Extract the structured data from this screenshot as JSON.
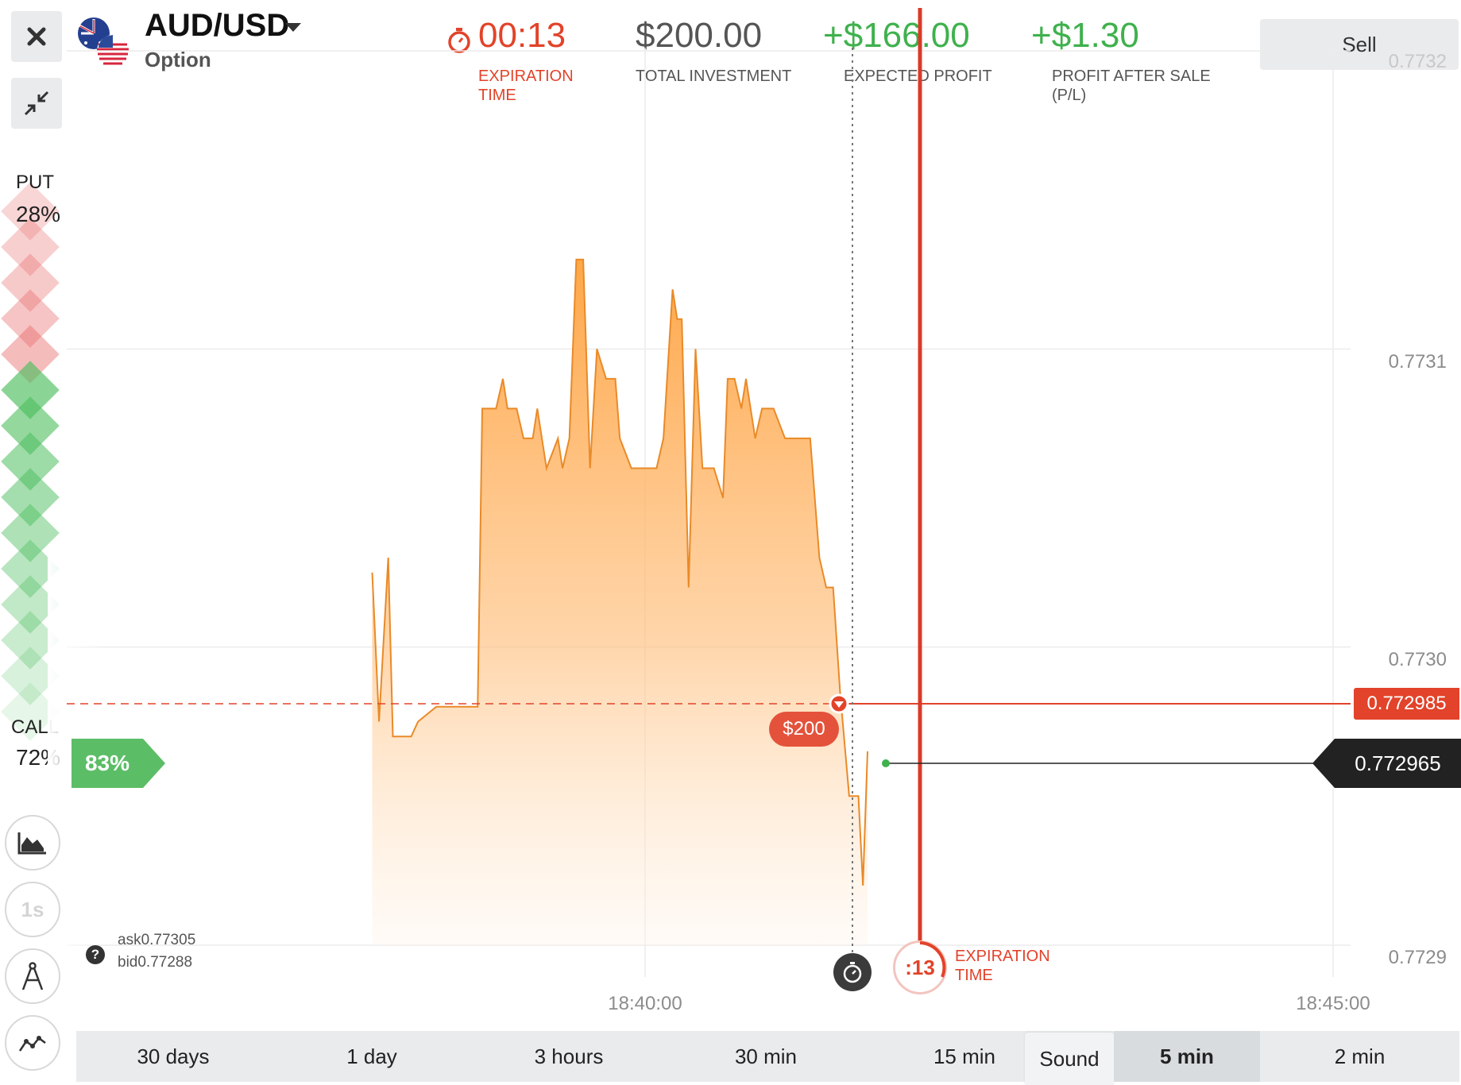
{
  "asset": {
    "name": "AUD/USD",
    "type": "Option"
  },
  "stats": {
    "expiration": {
      "value": "00:13",
      "label": "EXPIRATION TIME"
    },
    "investment": {
      "value": "$200.00",
      "label": "TOTAL INVESTMENT"
    },
    "expected_profit": {
      "value": "+$166.00",
      "label": "EXPECTED PROFIT"
    },
    "profit_after_sale": {
      "value": "+$1.30",
      "label": "PROFIT AFTER SALE (P/L)"
    }
  },
  "sell_button": "Sell",
  "sentiment": {
    "put_label": "PUT",
    "put_pct": "28%",
    "call_label": "CALL",
    "call_pct": "72%"
  },
  "payout_badge": "83%",
  "tools": {
    "timeframe": "1s"
  },
  "quotes": {
    "ask_label": "ask",
    "ask_value": "0.77305",
    "bid_label": "bid",
    "bid_value": "0.77288"
  },
  "chart": {
    "y_ticks": [
      "0.7732",
      "0.7731",
      "0.7730",
      "0.7729"
    ],
    "x_ticks": [
      "18:40:00",
      "18:45:00"
    ],
    "entry_price": "0.772985",
    "current_price": "0.772965",
    "deal_amount": "$200",
    "timer": ":13",
    "expiration_label": "EXPIRATION TIME"
  },
  "chart_data": {
    "type": "area",
    "title": "",
    "ylim": [
      0.7729,
      0.7732
    ],
    "x_ticks": [
      "18:40:00",
      "18:45:00"
    ],
    "series": [
      {
        "points": [
          [
            "18:38:01",
            0.773025
          ],
          [
            "18:38:04",
            0.772975
          ],
          [
            "18:38:08",
            0.77303
          ],
          [
            "18:38:10",
            0.77297
          ],
          [
            "18:38:18",
            0.77297
          ],
          [
            "18:38:21",
            0.772975
          ],
          [
            "18:38:29",
            0.77298
          ],
          [
            "18:38:47",
            0.77298
          ],
          [
            "18:38:49",
            0.77308
          ],
          [
            "18:38:55",
            0.77308
          ],
          [
            "18:38:58",
            0.77309
          ],
          [
            "18:39:00",
            0.77308
          ],
          [
            "18:39:04",
            0.77308
          ],
          [
            "18:39:07",
            0.77307
          ],
          [
            "18:39:11",
            0.77307
          ],
          [
            "18:39:13",
            0.77308
          ],
          [
            "18:39:17",
            0.77306
          ],
          [
            "18:39:22",
            0.77307
          ],
          [
            "18:39:24",
            0.77306
          ],
          [
            "18:39:27",
            0.77307
          ],
          [
            "18:39:30",
            0.77313
          ],
          [
            "18:39:33",
            0.77313
          ],
          [
            "18:39:36",
            0.77306
          ],
          [
            "18:39:39",
            0.7731
          ],
          [
            "18:39:43",
            0.77309
          ],
          [
            "18:39:47",
            0.77309
          ],
          [
            "18:39:49",
            0.77307
          ],
          [
            "18:39:54",
            0.77306
          ],
          [
            "18:40:05",
            0.77306
          ],
          [
            "18:40:08",
            0.77307
          ],
          [
            "18:40:12",
            0.77312
          ],
          [
            "18:40:14",
            0.77311
          ],
          [
            "18:40:16",
            0.77311
          ],
          [
            "18:40:19",
            0.77302
          ],
          [
            "18:40:22",
            0.7731
          ],
          [
            "18:40:25",
            0.77306
          ],
          [
            "18:40:30",
            0.77306
          ],
          [
            "18:40:34",
            0.77305
          ],
          [
            "18:40:36",
            0.77309
          ],
          [
            "18:40:39",
            0.77309
          ],
          [
            "18:40:42",
            0.77308
          ],
          [
            "18:40:44",
            0.77309
          ],
          [
            "18:40:48",
            0.77307
          ],
          [
            "18:40:51",
            0.77308
          ],
          [
            "18:40:56",
            0.77308
          ],
          [
            "18:41:01",
            0.77307
          ],
          [
            "18:41:05",
            0.77307
          ],
          [
            "18:41:09",
            0.77307
          ],
          [
            "18:41:12",
            0.77307
          ],
          [
            "18:41:16",
            0.77303
          ],
          [
            "18:41:19",
            0.77302
          ],
          [
            "18:41:22",
            0.77302
          ],
          [
            "18:41:25",
            0.772985
          ],
          [
            "18:41:29",
            0.77295
          ],
          [
            "18:41:33",
            0.77295
          ],
          [
            "18:41:35",
            0.77292
          ],
          [
            "18:41:37",
            0.772965
          ]
        ]
      }
    ]
  }
}
